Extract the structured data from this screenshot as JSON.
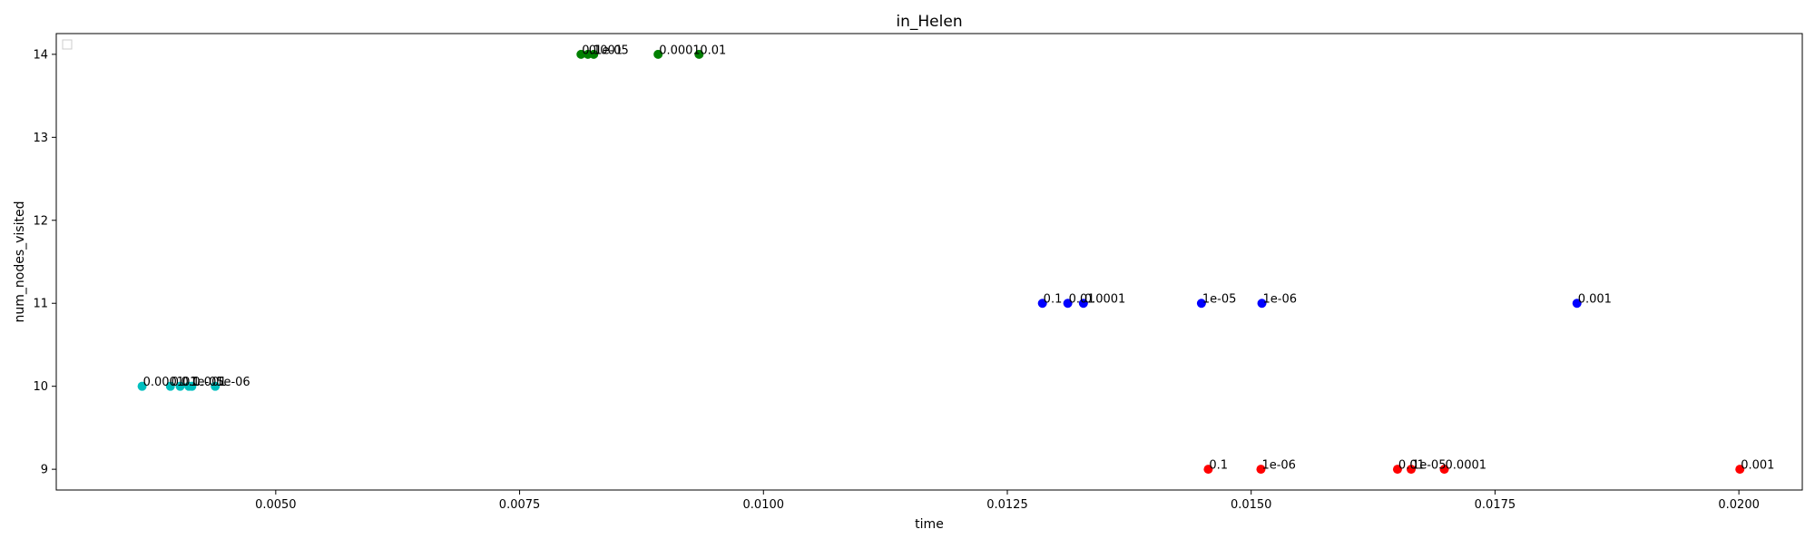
{
  "chart_data": {
    "type": "scatter",
    "title": "in_Helen",
    "xlabel": "time",
    "ylabel": "num_nodes_visited",
    "xlim": [
      0.00275,
      0.02065
    ],
    "ylim": [
      8.75,
      14.25
    ],
    "x_ticks": [
      "0.0050",
      "0.0075",
      "0.0100",
      "0.0125",
      "0.0150",
      "0.0175",
      "0.0200"
    ],
    "x_tick_values": [
      0.005,
      0.0075,
      0.01,
      0.0125,
      0.015,
      0.0175,
      0.02
    ],
    "y_ticks": [
      "9",
      "10",
      "11",
      "12",
      "13",
      "14"
    ],
    "y_tick_values": [
      9,
      10,
      11,
      12,
      13,
      14
    ],
    "grid": false,
    "legend": "top-left (empty)",
    "series": [
      {
        "color": "#00bfbf",
        "points": [
          {
            "x": 0.00363,
            "y": 10,
            "label": "0.0001"
          },
          {
            "x": 0.00392,
            "y": 10,
            "label": "0.01"
          },
          {
            "x": 0.00402,
            "y": 10,
            "label": "0.1"
          },
          {
            "x": 0.00411,
            "y": 10,
            "label": "1e-05"
          },
          {
            "x": 0.00414,
            "y": 10,
            "label": "0.001"
          },
          {
            "x": 0.00438,
            "y": 10,
            "label": "1e-06"
          }
        ]
      },
      {
        "color": "#008000",
        "points": [
          {
            "x": 0.00813,
            "y": 14,
            "label": "0.1"
          },
          {
            "x": 0.0082,
            "y": 14,
            "label": "0.001"
          },
          {
            "x": 0.00826,
            "y": 14,
            "label": "1e-05"
          },
          {
            "x": 0.00892,
            "y": 14,
            "label": "0.0001"
          },
          {
            "x": 0.00934,
            "y": 14,
            "label": "0.01"
          }
        ]
      },
      {
        "color": "#0000ff",
        "points": [
          {
            "x": 0.01286,
            "y": 11,
            "label": "0.1"
          },
          {
            "x": 0.01312,
            "y": 11,
            "label": "0.01"
          },
          {
            "x": 0.01328,
            "y": 11,
            "label": "0.0001"
          },
          {
            "x": 0.01449,
            "y": 11,
            "label": "1e-05"
          },
          {
            "x": 0.01511,
            "y": 11,
            "label": "1e-06"
          },
          {
            "x": 0.01834,
            "y": 11,
            "label": "0.001"
          }
        ]
      },
      {
        "color": "#ff0000",
        "points": [
          {
            "x": 0.01456,
            "y": 9,
            "label": "0.1"
          },
          {
            "x": 0.0151,
            "y": 9,
            "label": "1e-06"
          },
          {
            "x": 0.0165,
            "y": 9,
            "label": "0.01"
          },
          {
            "x": 0.01664,
            "y": 9,
            "label": "1e-05"
          },
          {
            "x": 0.01698,
            "y": 9,
            "label": "0.0001"
          },
          {
            "x": 0.02001,
            "y": 9,
            "label": "0.001"
          }
        ]
      }
    ]
  }
}
